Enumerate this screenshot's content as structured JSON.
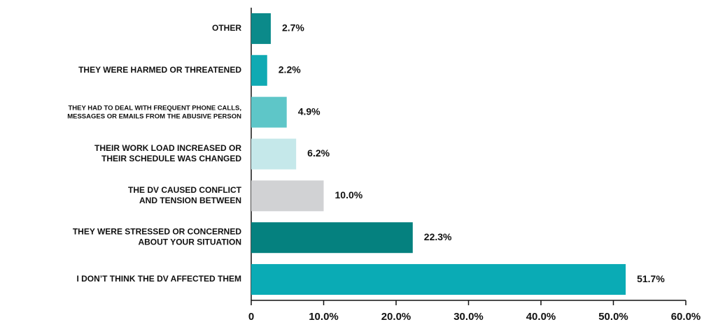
{
  "chart_data": {
    "type": "hbar",
    "categories": [
      "OTHER",
      "THEY WERE HARMED OR THREATENED",
      "THEY HAD TO DEAL WITH FREQUENT PHONE CALLS,\nMESSAGES OR EMAILS FROM THE ABUSIVE PERSON",
      "THEIR WORK LOAD INCREASED OR\nTHEIR SCHEDULE WAS CHANGED",
      "THE DV CAUSED CONFLICT\nAND TENSION BETWEEN",
      "THEY WERE STRESSED OR CONCERNED\nABOUT YOUR SITUATION",
      "I DON’T THINK THE DV AFFECTED THEM"
    ],
    "values": [
      2.7,
      2.2,
      4.9,
      6.2,
      10.0,
      22.3,
      51.7
    ],
    "value_labels": [
      "2.7%",
      "2.2%",
      "4.9%",
      "6.2%",
      "10.0%",
      "22.3%",
      "51.7%"
    ],
    "colors": [
      "#0b8a8a",
      "#10aab3",
      "#5ec6c8",
      "#c5e8ea",
      "#d1d2d4",
      "#05817f",
      "#0aabb5"
    ],
    "xlim": [
      0,
      60
    ],
    "xticks": [
      0,
      {
        "value": 10,
        "label": "10.0%"
      },
      {
        "value": 20,
        "label": "20.0%"
      },
      {
        "value": 30,
        "label": "30.0%"
      },
      {
        "value": 40,
        "label": "40.0%"
      },
      {
        "value": 50,
        "label": "50.0%"
      },
      {
        "value": 60,
        "label": "60.0%"
      }
    ]
  }
}
